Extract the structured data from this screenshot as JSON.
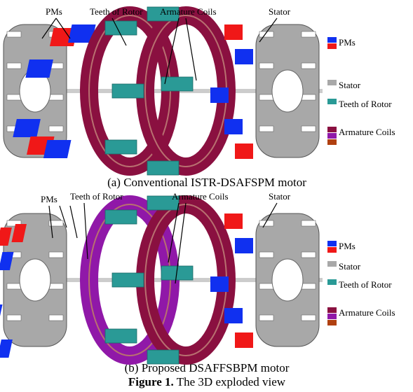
{
  "panels": [
    {
      "callouts": [
        "PMs",
        "Teeth of Rotor",
        "Armature Coils",
        "Stator"
      ],
      "legend": [
        "PMs",
        "Stator",
        "Teeth of Rotor",
        "Armature Coils"
      ],
      "caption": "(a) Conventional ISTR-DSAFSPM motor"
    },
    {
      "callouts": [
        "PMs",
        "Teeth of Rotor",
        "Armature Coils",
        "Stator"
      ],
      "legend": [
        "PMs",
        "Stator",
        "Teeth of Rotor",
        "Armature Coils"
      ],
      "caption": "(b) Proposed DSAFFSBPM motor"
    }
  ],
  "figure_caption": {
    "label": "Figure 1.",
    "text": "The 3D exploded view"
  }
}
